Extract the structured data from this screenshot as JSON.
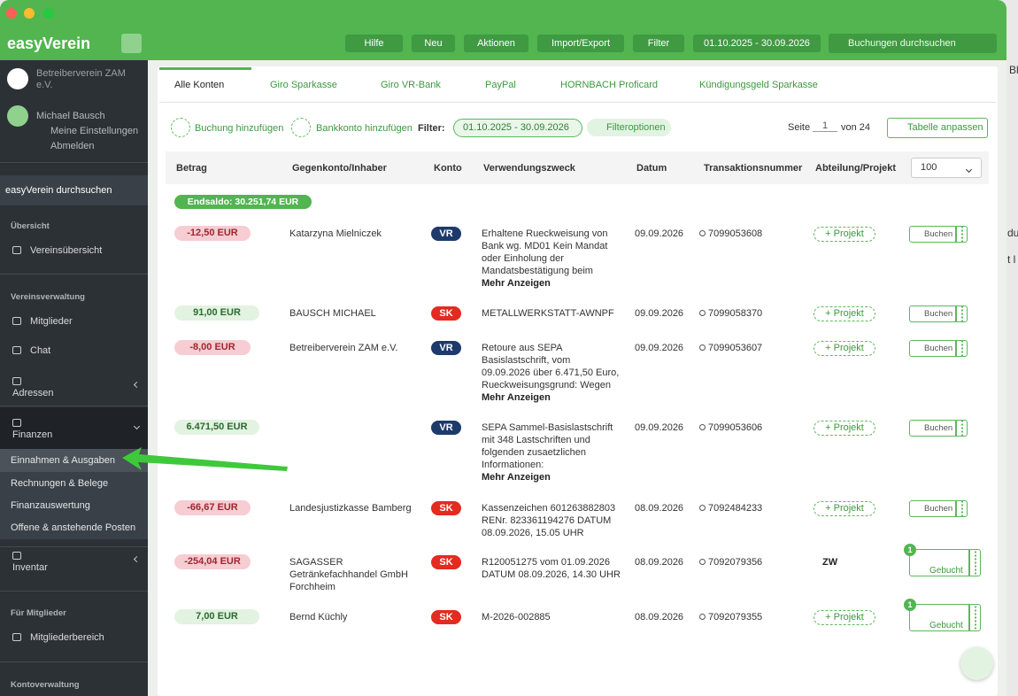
{
  "topbar": {
    "brand": "easyVerein",
    "buttons": [
      "Hilfe",
      "Neu",
      "Aktionen",
      "Import/Export",
      "Filter",
      "01.10.2025 - 30.09.2026"
    ],
    "search_placeholder": "Buchungen durchsuchen"
  },
  "sidebar": {
    "org": "Betreiberverein ZAM e.V.",
    "user": "Michael Bausch",
    "user_links": [
      "Meine Einstellungen",
      "Abmelden"
    ],
    "search": "easyVerein durchsuchen",
    "items": [
      {
        "kind": "heading",
        "label": "Übersicht"
      },
      {
        "kind": "item",
        "label": "Vereinsübersicht"
      },
      {
        "kind": "heading",
        "label": "Vereinsverwaltung"
      },
      {
        "kind": "item",
        "label": "Mitglieder"
      },
      {
        "kind": "item",
        "label": "Chat"
      },
      {
        "kind": "group",
        "label": "Adressen"
      },
      {
        "kind": "group",
        "label": "Finanzen",
        "open": true
      },
      {
        "kind": "sub",
        "label": "Einnahmen & Ausgaben",
        "active": true
      },
      {
        "kind": "sub",
        "label": "Rechnungen & Belege"
      },
      {
        "kind": "sub",
        "label": "Finanzauswertung"
      },
      {
        "kind": "sub",
        "label": "Offene & anstehende Posten"
      },
      {
        "kind": "group",
        "label": "Inventar"
      },
      {
        "kind": "heading",
        "label": "Für Mitglieder"
      },
      {
        "kind": "item",
        "label": "Mitgliederbereich"
      },
      {
        "kind": "heading",
        "label": "Kontoverwaltung"
      }
    ]
  },
  "tabs": {
    "items": [
      "Alle Konten",
      "Giro Sparkasse",
      "Giro VR-Bank",
      "PayPal",
      "HORNBACH Proficard",
      "Kündigungsgeld Sparkasse"
    ],
    "active": 0
  },
  "toolbar": {
    "add_booking": "Buchung hinzufügen",
    "add_account": "Bankkonto hinzufügen",
    "filter_label": "Filter:",
    "filter_chip": "01.10.2025 - 30.09.2026",
    "filter_options": "Filteroptionen",
    "page_label": "Seite",
    "page": "1",
    "page_of": "von 24",
    "customize": "Tabelle anpassen"
  },
  "table": {
    "columns": [
      "Betrag",
      "Gegenkonto/Inhaber",
      "Konto",
      "Verwendungszweck",
      "Datum",
      "Transaktionsnummer",
      "Abteilung/Projekt"
    ],
    "page_size": "100",
    "endsaldo": "Endsaldo: 30.251,74 EUR",
    "rows": [
      {
        "amount": "-12,50 EUR",
        "counterparty": [
          "Katarzyna Mielniczek"
        ],
        "account": "VR",
        "purpose": [
          "Erhaltene Rueckweisung von",
          "Bank wg. MD01 Kein Mandat",
          "oder Einholung der",
          "Mandatsbestätigung beim"
        ],
        "more": "Mehr Anzeigen",
        "date": "09.09.2026",
        "txn": "7099053608",
        "project": "+ Projekt",
        "action": "Buchen"
      },
      {
        "amount": "91,00 EUR",
        "counterparty": [
          "BAUSCH MICHAEL"
        ],
        "account": "SK",
        "purpose": [
          "METALLWERKSTATT-AWNPF"
        ],
        "date": "09.09.2026",
        "txn": "7099058370",
        "project": "+ Projekt",
        "action": "Buchen"
      },
      {
        "amount": "-8,00 EUR",
        "counterparty": [
          "Betreiberverein ZAM e.V."
        ],
        "account": "VR",
        "purpose": [
          "Retoure aus SEPA",
          "Basislastschrift, vom",
          "09.09.2026 über 6.471,50 Euro,",
          "Rueckweisungsgrund: Wegen"
        ],
        "more": "Mehr Anzeigen",
        "date": "09.09.2026",
        "txn": "7099053607",
        "project": "+ Projekt",
        "action": "Buchen"
      },
      {
        "amount": "6.471,50 EUR",
        "counterparty": [],
        "account": "VR",
        "purpose": [
          "SEPA Sammel-Basislastschrift",
          "mit 348 Lastschriften und",
          "folgenden zusaetzlichen",
          "Informationen:"
        ],
        "more": "Mehr Anzeigen",
        "date": "09.09.2026",
        "txn": "7099053606",
        "project": "+ Projekt",
        "action": "Buchen"
      },
      {
        "amount": "-66,67 EUR",
        "counterparty": [
          "Landesjustizkasse Bamberg"
        ],
        "account": "SK",
        "purpose": [
          "Kassenzeichen 601263882803",
          "RENr. 823361194276 DATUM",
          "08.09.2026, 15.05 UHR"
        ],
        "date": "08.09.2026",
        "txn": "7092484233",
        "project": "+ Projekt",
        "action": "Buchen"
      },
      {
        "amount": "-254,04 EUR",
        "counterparty": [
          "SAGASSER",
          "Getränkefachhandel GmbH",
          "Forchheim"
        ],
        "account": "SK",
        "purpose": [
          "R120051275 vom 01.09.2026",
          "DATUM 08.09.2026, 14.30 UHR"
        ],
        "date": "08.09.2026",
        "txn": "7092079356",
        "department": "ZW",
        "badge": "1",
        "action": "Gebucht"
      },
      {
        "amount": "7,00 EUR",
        "counterparty": [
          "Bernd Küchly"
        ],
        "account": "SK",
        "purpose": [
          "M-2026-002885"
        ],
        "date": "08.09.2026",
        "txn": "7092079355",
        "project": "+ Projekt",
        "badge": "1",
        "action": "Gebucht"
      }
    ]
  },
  "background_fragments": [
    "Bl",
    "du",
    "t l"
  ]
}
